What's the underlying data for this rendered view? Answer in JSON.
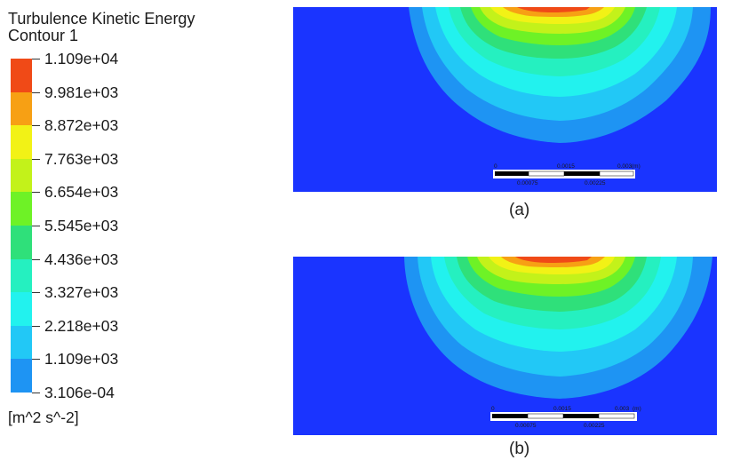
{
  "legend": {
    "title": "Turbulence Kinetic Energy",
    "subtitle": "Contour 1",
    "levels": [
      "1.109e+04",
      "9.981e+03",
      "8.872e+03",
      "7.763e+03",
      "6.654e+03",
      "5.545e+03",
      "4.436e+03",
      "3.327e+03",
      "2.218e+03",
      "1.109e+03",
      "3.106e-04"
    ],
    "colors": [
      "#f04a17",
      "#f7a014",
      "#f2f216",
      "#c3f21a",
      "#6ef226",
      "#2fe07a",
      "#25f0c0",
      "#22f2ee",
      "#22c8f6",
      "#1e94f3",
      "#1e3cf2"
    ],
    "units": "[m^2 s^-2]"
  },
  "panels": [
    {
      "caption": "(a)",
      "scale": {
        "top_labels": [
          "0",
          "0.0015",
          "0.003",
          "(m)"
        ],
        "bottom_labels": [
          "0.00075",
          "0.00225"
        ]
      }
    },
    {
      "caption": "(b)",
      "scale": {
        "top_labels": [
          "0",
          "0.0015",
          "0.003",
          "(m)"
        ],
        "bottom_labels": [
          "0.00075",
          "0.00225"
        ]
      }
    }
  ]
}
